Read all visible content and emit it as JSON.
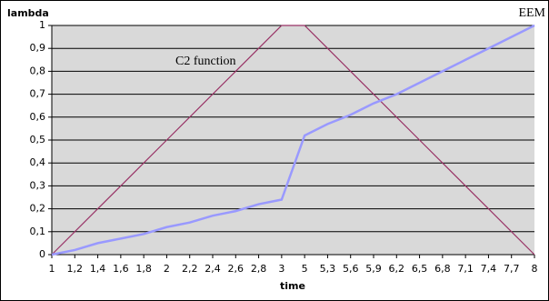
{
  "chart_data": {
    "type": "line",
    "y_label": "lambda",
    "x_label": "time",
    "categories": [
      "1",
      "1,2",
      "1,4",
      "1,6",
      "1,8",
      "2",
      "2,2",
      "2,4",
      "2,6",
      "2,8",
      "3",
      "5",
      "5,3",
      "5,6",
      "5,9",
      "6,2",
      "6,5",
      "6,8",
      "7,1",
      "7,4",
      "7,7",
      "8"
    ],
    "series": [
      {
        "name": "C2 function",
        "color": "#993366",
        "values": [
          0,
          0.1,
          0.2,
          0.3,
          0.4,
          0.5,
          0.6,
          0.7,
          0.8,
          0.9,
          1,
          1,
          0.9,
          0.8,
          0.7,
          0.6,
          0.5,
          0.4,
          0.3,
          0.2,
          0.1,
          0
        ]
      },
      {
        "name": "EEM",
        "color": "#9999ff",
        "values": [
          0,
          0.02,
          0.05,
          0.07,
          0.09,
          0.12,
          0.14,
          0.17,
          0.19,
          0.22,
          0.24,
          0.52,
          0.57,
          0.61,
          0.66,
          0.7,
          0.75,
          0.8,
          0.85,
          0.9,
          0.95,
          1
        ]
      }
    ],
    "ylim": [
      0,
      1
    ],
    "yticks": [
      0,
      {
        "value": 0.1,
        "label": "0,1"
      },
      {
        "value": 0.2,
        "label": "0,2"
      },
      {
        "value": 0.3,
        "label": "0,3"
      },
      {
        "value": 0.4,
        "label": "0,4"
      },
      {
        "value": 0.5,
        "label": "0,5"
      },
      {
        "value": 0.6,
        "label": "0,6"
      },
      {
        "value": 0.7,
        "label": "0,7"
      },
      {
        "value": 0.8,
        "label": "0,8"
      },
      {
        "value": 0.9,
        "label": "0,9"
      },
      1
    ],
    "grid": true,
    "plot_background": "#d9d9d9"
  }
}
